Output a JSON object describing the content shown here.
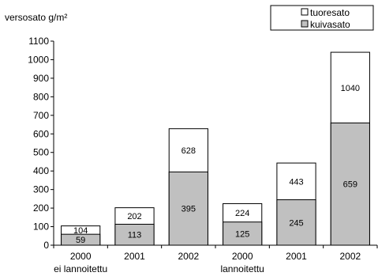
{
  "chart_data": {
    "type": "bar",
    "stacked": "overlay",
    "ylabel": "versosato g/m²",
    "ylim": [
      0,
      1100
    ],
    "yticks": [
      0,
      100,
      200,
      300,
      400,
      500,
      600,
      700,
      800,
      900,
      1000,
      1100
    ],
    "categories": [
      "2000",
      "2001",
      "2002",
      "2000",
      "2001",
      "2002"
    ],
    "groups": [
      {
        "label": "ei lannoitettu",
        "categories": [
          0,
          1,
          2
        ]
      },
      {
        "label": "lannoitettu",
        "categories": [
          3,
          4,
          5
        ]
      }
    ],
    "series": [
      {
        "name": "tuoresato",
        "values": [
          104,
          202,
          628,
          224,
          443,
          1040
        ],
        "color": "#ffffff"
      },
      {
        "name": "kuivasato",
        "values": [
          59,
          113,
          395,
          125,
          245,
          659
        ],
        "color": "#c0c0c0"
      }
    ],
    "grid": false,
    "legend_position": "top-right"
  }
}
